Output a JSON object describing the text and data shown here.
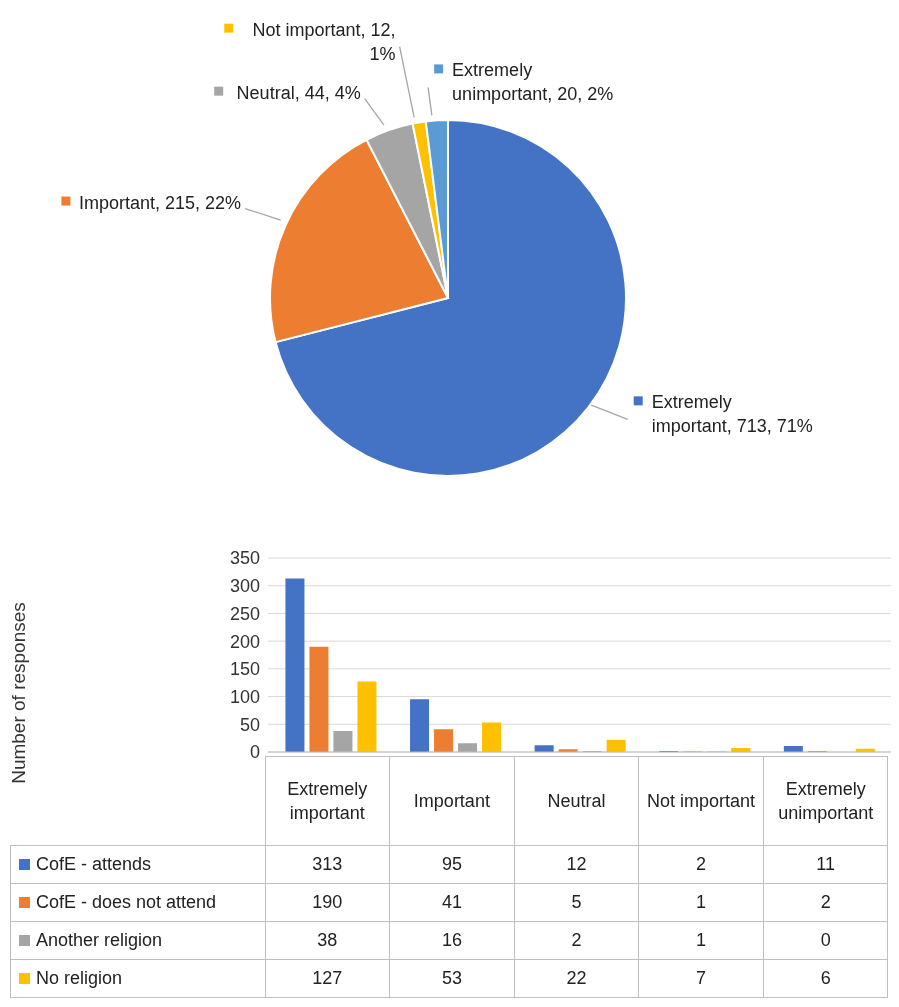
{
  "chart_data": [
    {
      "type": "pie",
      "categories": [
        "Extremely important",
        "Important",
        "Neutral",
        "Not important",
        "Extremely unimportant"
      ],
      "values": [
        713,
        215,
        44,
        12,
        20
      ],
      "value_labels": [
        "713, 71%",
        "215, 22%",
        "44, 4%",
        "12, 1%",
        "20, 2%"
      ],
      "colors": [
        "#4472c4",
        "#ed7d31",
        "#a5a5a5",
        "#ffc000",
        "#5b9bd5"
      ],
      "legend": "top left"
    },
    {
      "type": "bar",
      "ylabel": "Number of responses",
      "categories": [
        "Extremely important",
        "Important",
        "Neutral",
        "Not important",
        "Extremely unimportant"
      ],
      "series": [
        {
          "name": "CofE - attends",
          "color": "#4472c4",
          "values": [
            313,
            95,
            12,
            2,
            11
          ]
        },
        {
          "name": "CofE - does not attend",
          "color": "#ed7d31",
          "values": [
            190,
            41,
            5,
            1,
            2
          ]
        },
        {
          "name": "Another religion",
          "color": "#a5a5a5",
          "values": [
            38,
            16,
            2,
            1,
            0
          ]
        },
        {
          "name": "No religion",
          "color": "#ffc000",
          "values": [
            127,
            53,
            22,
            7,
            6
          ]
        }
      ],
      "ylim": [
        0,
        350
      ],
      "yticks": [
        0,
        50,
        100,
        150,
        200,
        250,
        300,
        350
      ],
      "grid": "y",
      "legend": "bottom",
      "data_labels": true
    }
  ]
}
